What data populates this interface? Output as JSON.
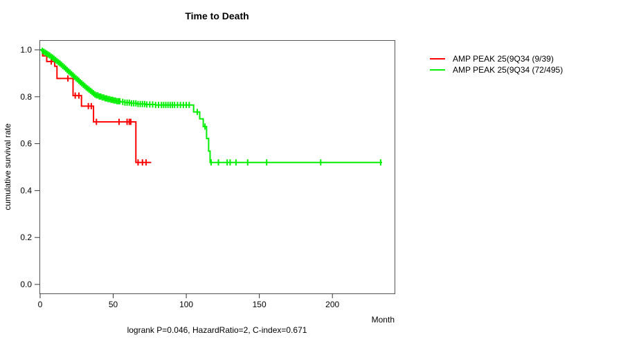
{
  "figure": {
    "title": "Time to Death",
    "xlabel": "Month",
    "ylabel": "cumulative survival rate",
    "annotation": "logrank P=0.046, HazardRatio=2, C-index=0.671"
  },
  "chart_data": {
    "type": "line",
    "subtype": "kaplan-meier-step-curves",
    "title": "Time to Death",
    "xlabel": "Month",
    "ylabel": "cumulative survival rate",
    "annotation": "logrank P=0.046, HazardRatio=2, C-index=0.671",
    "grid": false,
    "legend_position": "right-outside",
    "xlim": [
      0,
      242
    ],
    "ylim": [
      0,
      1.0
    ],
    "x_ticks": [
      0,
      50,
      100,
      150,
      200
    ],
    "y_ticks": [
      {
        "v": 0.0,
        "label": "0.0"
      },
      {
        "v": 0.2,
        "label": "0.2"
      },
      {
        "v": 0.4,
        "label": "0.4"
      },
      {
        "v": 0.6,
        "label": "0.6"
      },
      {
        "v": 0.8,
        "label": "0.8"
      },
      {
        "v": 1.0,
        "label": "1.0"
      }
    ],
    "series": [
      {
        "name": "AMP PEAK 25(9Q34 (9/39)",
        "color": "#ff0000",
        "events": "9/39",
        "steps": [
          [
            0,
            1.0
          ],
          [
            1.7,
            0.974
          ],
          [
            4.5,
            0.95
          ],
          [
            10,
            0.93
          ],
          [
            11.5,
            0.878
          ],
          [
            22.5,
            0.805
          ],
          [
            28.3,
            0.76
          ],
          [
            36.5,
            0.693
          ],
          [
            65.5,
            0.52
          ]
        ],
        "end_month": 76,
        "censor_months": [
          7.6,
          19,
          24,
          26.5,
          33,
          35,
          38.5,
          54,
          59.5,
          61,
          62,
          67,
          70,
          72.5
        ]
      },
      {
        "name": "AMP PEAK 25(9Q34 (72/495)",
        "color": "#00ee00",
        "events": "72/495",
        "steps": [
          [
            0,
            1.0
          ],
          [
            1,
            0.996
          ],
          [
            2,
            0.992
          ],
          [
            3,
            0.988
          ],
          [
            4,
            0.984
          ],
          [
            5,
            0.98
          ],
          [
            6,
            0.976
          ],
          [
            7,
            0.971
          ],
          [
            8,
            0.967
          ],
          [
            9,
            0.962
          ],
          [
            10,
            0.957
          ],
          [
            11,
            0.952
          ],
          [
            12,
            0.947
          ],
          [
            13,
            0.942
          ],
          [
            14,
            0.937
          ],
          [
            15,
            0.931
          ],
          [
            16,
            0.926
          ],
          [
            17,
            0.92
          ],
          [
            18,
            0.914
          ],
          [
            19,
            0.908
          ],
          [
            20,
            0.903
          ],
          [
            21,
            0.897
          ],
          [
            22,
            0.891
          ],
          [
            23,
            0.885
          ],
          [
            24,
            0.879
          ],
          [
            25,
            0.874
          ],
          [
            26,
            0.868
          ],
          [
            27,
            0.862
          ],
          [
            28,
            0.857
          ],
          [
            29,
            0.851
          ],
          [
            30,
            0.846
          ],
          [
            31,
            0.84
          ],
          [
            32,
            0.835
          ],
          [
            33,
            0.83
          ],
          [
            34,
            0.825
          ],
          [
            35,
            0.82
          ],
          [
            36,
            0.815
          ],
          [
            37,
            0.81
          ],
          [
            38,
            0.806
          ],
          [
            40,
            0.801
          ],
          [
            42,
            0.797
          ],
          [
            44,
            0.793
          ],
          [
            46,
            0.79
          ],
          [
            48,
            0.787
          ],
          [
            50,
            0.784
          ],
          [
            52,
            0.781
          ],
          [
            55,
            0.778
          ],
          [
            58,
            0.775
          ],
          [
            62,
            0.772
          ],
          [
            66,
            0.769
          ],
          [
            72,
            0.767
          ],
          [
            79,
            0.765
          ],
          [
            105,
            0.735
          ],
          [
            109.2,
            0.706
          ],
          [
            111.6,
            0.673
          ],
          [
            113.9,
            0.622
          ],
          [
            115.3,
            0.568
          ],
          [
            116.3,
            0.52
          ]
        ],
        "end_month": 234,
        "censor_months": [
          1.5,
          2.5,
          3.5,
          4.5,
          5.5,
          6.5,
          7.5,
          8.5,
          9.5,
          10.5,
          11.5,
          12.5,
          13.5,
          14.5,
          15.5,
          16.5,
          17.5,
          18.5,
          19.5,
          20.5,
          21.5,
          22.5,
          23.5,
          24.5,
          25.5,
          26.5,
          27.5,
          28.5,
          29.5,
          30.5,
          31.5,
          32.5,
          33.5,
          34.5,
          35.5,
          36.5,
          37.5,
          38.5,
          39.5,
          40.5,
          41.5,
          42.5,
          43.5,
          44.5,
          45.5,
          46.5,
          47.5,
          48.5,
          49.5,
          50.5,
          51.5,
          52.5,
          53.5,
          54.5,
          56.5,
          58,
          59.5,
          61,
          62.5,
          64,
          65.5,
          67,
          68.5,
          70,
          71.5,
          73,
          75,
          77,
          79,
          81,
          83,
          84.5,
          86,
          87.5,
          89,
          90.5,
          92,
          94,
          96,
          98,
          100,
          102,
          107.5,
          112.8,
          117,
          122,
          128,
          130,
          134,
          142,
          155,
          192,
          233
        ]
      }
    ]
  }
}
